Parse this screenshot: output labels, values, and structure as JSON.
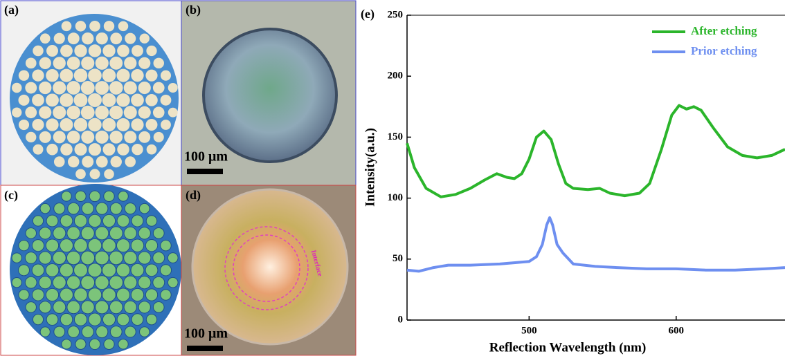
{
  "panels": {
    "a": "(a)",
    "b": "(b)",
    "c": "(c)",
    "d": "(d)"
  },
  "scale_bars": {
    "b": "100 μm",
    "d": "100 μm"
  },
  "annotation": "Interface",
  "chart_data": {
    "type": "line",
    "panel_label": "(e)",
    "x_label": "Reflection Wavelength (nm)",
    "y_label": "Intensity(a.u.)",
    "xlim": [
      417,
      674
    ],
    "xticks": [
      500,
      600
    ],
    "ylim": [
      0,
      250
    ],
    "yticks": [
      0,
      50,
      100,
      150,
      200,
      250
    ],
    "legend": "upper right",
    "series": [
      {
        "name": "After etching",
        "color": "#2bb52b",
        "x": [
          417,
          422,
          430,
          440,
          450,
          460,
          470,
          478,
          485,
          490,
          495,
          500,
          505,
          510,
          515,
          520,
          525,
          530,
          540,
          548,
          555,
          565,
          575,
          582,
          590,
          597,
          602,
          607,
          612,
          617,
          625,
          635,
          645,
          655,
          665,
          674
        ],
        "values": [
          145,
          125,
          108,
          101,
          103,
          108,
          115,
          120,
          117,
          116,
          120,
          132,
          150,
          155,
          148,
          128,
          112,
          108,
          107,
          108,
          104,
          102,
          104,
          112,
          140,
          168,
          176,
          173,
          175,
          172,
          158,
          142,
          135,
          133,
          135,
          140
        ]
      },
      {
        "name": "Prior etching",
        "color": "#6e8ff0",
        "x": [
          417,
          425,
          435,
          445,
          460,
          480,
          500,
          505,
          509,
          512,
          514,
          516,
          519,
          523,
          530,
          545,
          560,
          580,
          600,
          620,
          640,
          660,
          674
        ],
        "values": [
          41,
          40,
          43,
          45,
          45,
          46,
          48,
          52,
          62,
          78,
          84,
          78,
          62,
          55,
          46,
          44,
          43,
          42,
          42,
          41,
          41,
          42,
          43
        ]
      }
    ]
  }
}
